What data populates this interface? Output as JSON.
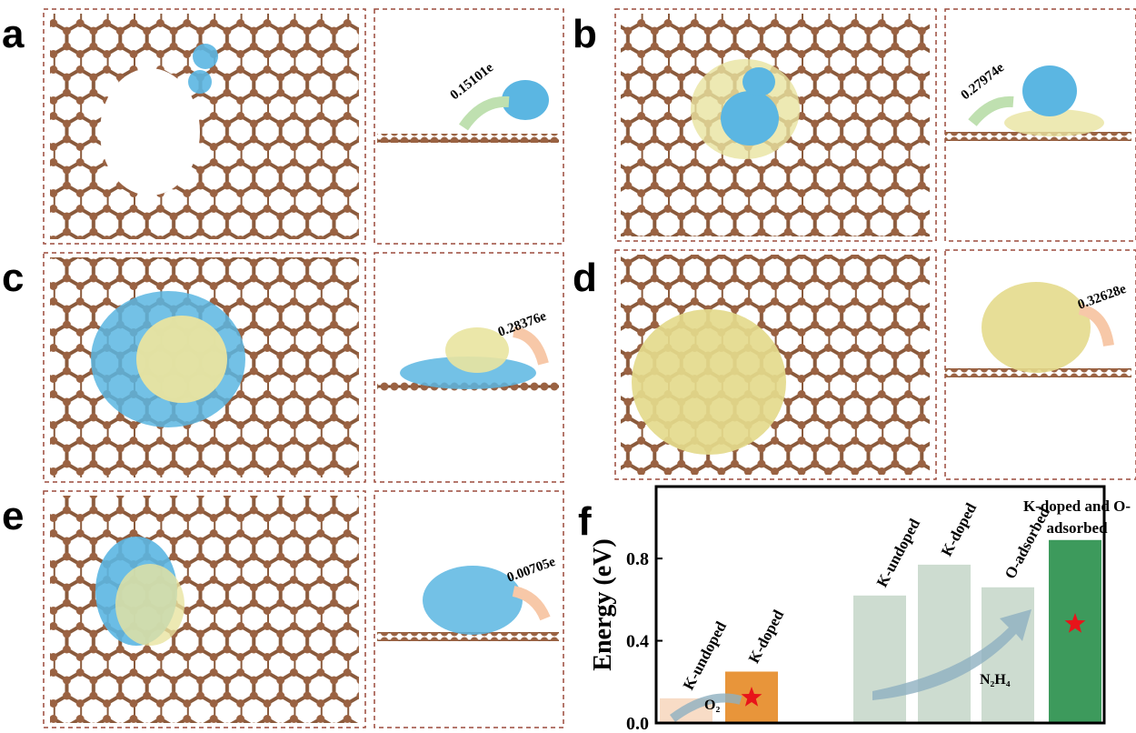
{
  "panels": [
    {
      "label": "a",
      "charge": "0.15101e"
    },
    {
      "label": "b",
      "charge": "0.27974e"
    },
    {
      "label": "c",
      "charge": "0.28376e"
    },
    {
      "label": "d",
      "charge": "0.32628e"
    },
    {
      "label": "e",
      "charge": "0.00705e"
    }
  ],
  "chart_data": {
    "type": "bar",
    "panel_label": "f",
    "y_label": "Energy (eV)",
    "categories": [
      "K-undoped",
      "K-doped",
      "K-undoped",
      "K-doped",
      "O-adsorbed",
      "K-doped and O-adsorbed"
    ],
    "values": [
      0.12,
      0.25,
      0.62,
      0.77,
      0.66,
      0.89
    ],
    "colors": [
      "#f8dcc6",
      "#e8953a",
      "#cddcd0",
      "#cddcd0",
      "#cddcd0",
      "#3d9a5c"
    ],
    "annotations": [
      "O₂",
      "N₂H₄"
    ],
    "ylim": [
      0,
      1.15
    ],
    "yticks": [
      {
        "value": 0,
        "label": "0.0"
      },
      0.4,
      0.8
    ]
  }
}
